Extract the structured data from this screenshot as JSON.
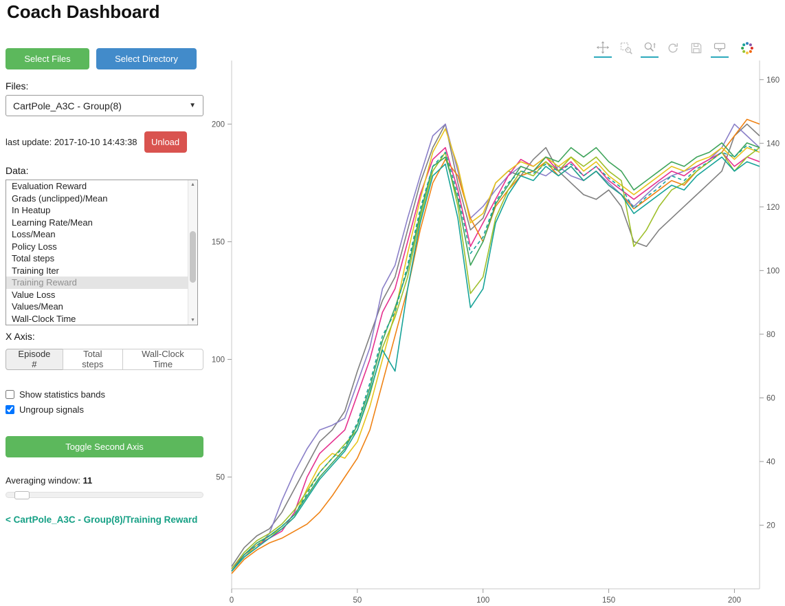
{
  "header": {
    "title": "Coach Dashboard"
  },
  "sidebar": {
    "select_files_label": "Select Files",
    "select_directory_label": "Select Directory",
    "files_label": "Files:",
    "files_select_value": "CartPole_A3C - Group(8)",
    "last_update_label": "last update: 2017-10-10 14:43:38",
    "unload_label": "Unload",
    "data_label": "Data:",
    "data_items": [
      "Evaluation Reward",
      "Grads (unclipped)/Mean",
      "In Heatup",
      "Learning Rate/Mean",
      "Loss/Mean",
      "Policy Loss",
      "Total steps",
      "Training Iter",
      "Training Reward",
      "Value Loss",
      "Values/Mean",
      "Wall-Clock Time"
    ],
    "data_selected": "Training Reward",
    "x_axis_label": "X Axis:",
    "x_axis_options": [
      "Episode #",
      "Total steps",
      "Wall-Clock Time"
    ],
    "x_axis_selected": "Episode #",
    "checkbox_stats": {
      "label": "Show statistics bands",
      "checked": false
    },
    "checkbox_ungroup": {
      "label": "Ungroup signals",
      "checked": true
    },
    "toggle_second_axis_label": "Toggle Second Axis",
    "averaging_window_label": "Averaging window:",
    "averaging_window_value": "11",
    "breadcrumb": "< CartPole_A3C - Group(8)/Training Reward"
  },
  "toolbar": {
    "active_color": "#2ca9bc",
    "tools": [
      {
        "name": "pan-icon",
        "active": true
      },
      {
        "name": "box-zoom-icon",
        "active": false
      },
      {
        "name": "wheel-zoom-icon",
        "active": true
      },
      {
        "name": "reset-icon",
        "active": false
      },
      {
        "name": "save-icon",
        "active": false
      },
      {
        "name": "hover-icon",
        "active": true
      },
      {
        "name": "bokeh-logo-icon",
        "active": false
      }
    ]
  },
  "chart_data": {
    "type": "line",
    "title": "",
    "xlabel": "",
    "ylabel": "",
    "legend": "none",
    "grid": false,
    "xlim": [
      0,
      210
    ],
    "ylim_left": [
      2.5,
      227
    ],
    "ylim_right": [
      0,
      166
    ],
    "x_ticks": [
      0,
      50,
      100,
      150,
      200
    ],
    "y_ticks_left": [
      50,
      100,
      150,
      200
    ],
    "y_ticks_right": [
      20,
      40,
      60,
      80,
      100,
      120,
      140,
      160
    ],
    "x_start": 0,
    "x_step": 5,
    "series": [
      {
        "name": "gray",
        "color": "#7f7f7f",
        "dash": "",
        "values": [
          12,
          20,
          25,
          28,
          35,
          45,
          55,
          65,
          70,
          78,
          95,
          110,
          125,
          135,
          155,
          175,
          190,
          200,
          175,
          155,
          160,
          175,
          180,
          178,
          185,
          190,
          180,
          175,
          170,
          168,
          172,
          165,
          150,
          148,
          155,
          160,
          165,
          170,
          175,
          180,
          195,
          200,
          195
        ]
      },
      {
        "name": "purple",
        "color": "#8a7fc8",
        "dash": "",
        "values": [
          10,
          16,
          20,
          26,
          40,
          52,
          62,
          70,
          72,
          75,
          90,
          105,
          130,
          140,
          160,
          178,
          195,
          200,
          180,
          160,
          165,
          172,
          178,
          182,
          180,
          178,
          182,
          178,
          176,
          180,
          175,
          170,
          165,
          170,
          175,
          178,
          180,
          182,
          185,
          190,
          200,
          195,
          190
        ]
      },
      {
        "name": "magenta",
        "color": "#e5308e",
        "dash": "",
        "values": [
          11,
          17,
          21,
          24,
          27,
          35,
          50,
          60,
          65,
          70,
          85,
          100,
          120,
          130,
          150,
          170,
          185,
          190,
          172,
          148,
          158,
          168,
          178,
          185,
          182,
          186,
          180,
          184,
          178,
          182,
          176,
          172,
          168,
          172,
          176,
          180,
          178,
          182,
          185,
          188,
          182,
          186,
          184
        ]
      },
      {
        "name": "orange",
        "color": "#ef8214",
        "dash": "",
        "values": [
          9,
          15,
          19,
          22,
          24,
          27,
          30,
          35,
          42,
          50,
          58,
          70,
          90,
          110,
          130,
          155,
          175,
          185,
          178,
          160,
          150,
          165,
          172,
          178,
          180,
          184,
          178,
          182,
          176,
          180,
          174,
          170,
          164,
          168,
          172,
          176,
          174,
          180,
          184,
          188,
          195,
          202,
          200
        ]
      },
      {
        "name": "yellow",
        "color": "#e7c31b",
        "dash": "",
        "values": [
          10,
          16,
          21,
          25,
          28,
          33,
          45,
          55,
          60,
          58,
          65,
          80,
          100,
          120,
          145,
          168,
          188,
          198,
          182,
          158,
          162,
          175,
          180,
          184,
          182,
          186,
          182,
          186,
          180,
          184,
          178,
          174,
          170,
          174,
          178,
          182,
          180,
          184,
          186,
          190,
          185,
          190,
          188
        ]
      },
      {
        "name": "yellow-green",
        "color": "#9ebf2a",
        "dash": "",
        "values": [
          11,
          18,
          23,
          26,
          30,
          36,
          44,
          52,
          58,
          64,
          70,
          85,
          105,
          118,
          135,
          160,
          180,
          188,
          165,
          128,
          135,
          160,
          172,
          180,
          178,
          184,
          180,
          186,
          182,
          186,
          180,
          176,
          148,
          155,
          165,
          172,
          175,
          180,
          184,
          188,
          180,
          186,
          190
        ]
      },
      {
        "name": "green",
        "color": "#3fa45b",
        "dash": "",
        "values": [
          10,
          17,
          22,
          25,
          29,
          34,
          42,
          50,
          56,
          62,
          72,
          88,
          108,
          122,
          138,
          162,
          182,
          186,
          168,
          140,
          150,
          166,
          174,
          182,
          180,
          186,
          184,
          190,
          186,
          190,
          184,
          180,
          172,
          176,
          180,
          184,
          182,
          186,
          188,
          192,
          186,
          192,
          190
        ]
      },
      {
        "name": "teal",
        "color": "#17a398",
        "dash": "",
        "values": [
          10,
          16,
          20,
          24,
          28,
          33,
          41,
          49,
          55,
          61,
          70,
          86,
          104,
          95,
          130,
          158,
          178,
          183,
          160,
          122,
          130,
          158,
          170,
          178,
          176,
          182,
          178,
          182,
          176,
          180,
          174,
          170,
          162,
          166,
          170,
          174,
          172,
          178,
          182,
          186,
          180,
          184,
          182
        ]
      },
      {
        "name": "teal-dashed",
        "color": "#17a398",
        "dash": "5,4",
        "values": [
          10,
          17,
          21,
          25,
          29,
          34,
          43,
          52,
          58,
          63,
          73,
          90,
          110,
          120,
          140,
          164,
          182,
          188,
          170,
          145,
          152,
          167,
          175,
          180,
          179,
          183,
          180,
          183,
          178,
          182,
          177,
          173,
          164,
          169,
          173,
          178,
          176,
          181,
          184,
          188,
          186,
          191,
          188
        ]
      }
    ]
  }
}
